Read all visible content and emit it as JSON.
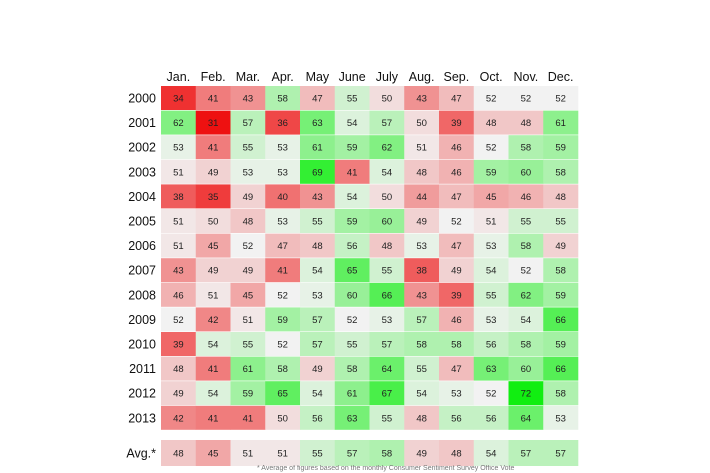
{
  "chart_data": {
    "type": "heatmap",
    "months": [
      "Jan.",
      "Feb.",
      "Mar.",
      "Apr.",
      "May",
      "June",
      "July",
      "Aug.",
      "Sep.",
      "Oct.",
      "Nov.",
      "Dec."
    ],
    "years": [
      "2000",
      "2001",
      "2002",
      "2003",
      "2004",
      "2005",
      "2006",
      "2007",
      "2008",
      "2009",
      "2010",
      "2011",
      "2012",
      "2013"
    ],
    "values": [
      [
        34,
        41,
        43,
        58,
        47,
        55,
        50,
        43,
        47,
        52,
        52,
        52
      ],
      [
        62,
        31,
        57,
        36,
        63,
        54,
        57,
        50,
        39,
        48,
        48,
        61
      ],
      [
        53,
        41,
        55,
        53,
        61,
        59,
        62,
        51,
        46,
        52,
        58,
        59
      ],
      [
        51,
        49,
        53,
        53,
        69,
        41,
        54,
        48,
        46,
        59,
        60,
        58
      ],
      [
        38,
        35,
        49,
        40,
        43,
        54,
        50,
        44,
        47,
        45,
        46,
        48
      ],
      [
        51,
        50,
        48,
        53,
        55,
        59,
        60,
        49,
        52,
        51,
        55,
        55
      ],
      [
        51,
        45,
        52,
        47,
        48,
        56,
        48,
        53,
        47,
        53,
        58,
        49
      ],
      [
        43,
        49,
        49,
        41,
        54,
        65,
        55,
        38,
        49,
        54,
        52,
        58
      ],
      [
        46,
        51,
        45,
        52,
        53,
        60,
        66,
        43,
        39,
        55,
        62,
        59
      ],
      [
        52,
        42,
        51,
        59,
        57,
        52,
        53,
        57,
        46,
        53,
        54,
        66
      ],
      [
        39,
        54,
        55,
        52,
        57,
        55,
        57,
        58,
        58,
        56,
        58,
        59
      ],
      [
        48,
        41,
        61,
        58,
        49,
        58,
        64,
        55,
        47,
        63,
        60,
        66
      ],
      [
        49,
        54,
        59,
        65,
        54,
        61,
        67,
        54,
        53,
        52,
        72,
        58
      ],
      [
        42,
        41,
        41,
        50,
        56,
        63,
        55,
        48,
        56,
        56,
        64,
        53
      ]
    ],
    "average_label": "Avg.*",
    "average": [
      48,
      45,
      51,
      51,
      55,
      57,
      58,
      49,
      48,
      54,
      57,
      57
    ],
    "color_scale": {
      "low": "#ee1111",
      "mid": "#f2f2f2",
      "high": "#11ee11",
      "min": 31,
      "center": 52,
      "max": 72
    }
  },
  "footnote": "* Average of figures based on the monthly Consumer Sentiment Survey Office Vote"
}
